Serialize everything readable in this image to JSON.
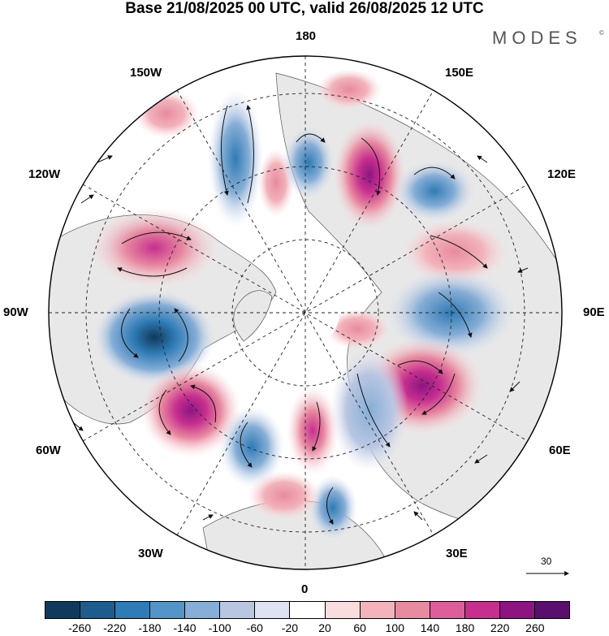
{
  "title": "Base 21/08/2025 00 UTC, valid 26/08/2025 12 UTC",
  "logo": {
    "text": "MODES",
    "mark": "©"
  },
  "longitude_labels": {
    "top": "180",
    "bottom": "0",
    "left": "90W",
    "right": "90E",
    "upper_left_1": "150W",
    "upper_left_2": "120W",
    "upper_right_1": "150E",
    "upper_right_2": "120E",
    "lower_left_1": "60W",
    "lower_left_2": "30W",
    "lower_right_1": "60E",
    "lower_right_2": "30E"
  },
  "reference_vector": {
    "value": "30"
  },
  "colorbar": {
    "ticks": [
      "-260",
      "-220",
      "-180",
      "-140",
      "-100",
      "-60",
      "-20",
      "20",
      "60",
      "100",
      "140",
      "180",
      "220",
      "260"
    ],
    "colors": [
      "#0f3a5c",
      "#1c5d8e",
      "#2f7bb5",
      "#5395c8",
      "#86aed6",
      "#b9c6e2",
      "#dfe2f1",
      "#ffffff",
      "#f9dcde",
      "#f2b3bb",
      "#e88aa0",
      "#de5e9a",
      "#c62f8e",
      "#8c1582",
      "#5a0f6f"
    ]
  },
  "colors": {
    "negative": "#2f7bb5",
    "positive": "#c62f8e",
    "land": "#e8e8e8",
    "coast": "#555555"
  }
}
